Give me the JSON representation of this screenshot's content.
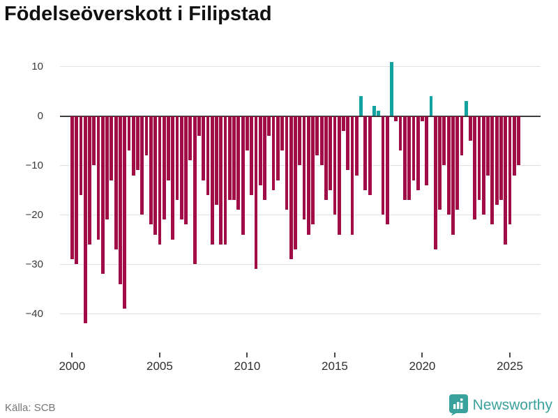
{
  "title": "Födelseöverskott i Filipstad",
  "source": {
    "text": "Källa: SCB"
  },
  "brand": {
    "name": "Newsworthy",
    "color": "#3aa29c"
  },
  "chart_data": {
    "type": "bar",
    "period": "quarterly",
    "x_start_year": 2000,
    "x_start_quarter": 1,
    "values": [
      -29,
      -30,
      -16,
      -42,
      -26,
      -10,
      -25,
      -32,
      -21,
      -13,
      -27,
      -34,
      -39,
      -7,
      -12,
      -11,
      -20,
      -8,
      -22,
      -24,
      -26,
      -21,
      -13,
      -25,
      -17,
      -21,
      -22,
      -9,
      -30,
      -4,
      -13,
      -16,
      -26,
      -18,
      -26,
      -26,
      -17,
      -17,
      -19,
      -24,
      -7,
      -16,
      -31,
      -14,
      -17,
      -4,
      -15,
      -13,
      -7,
      -19,
      -29,
      -27,
      -10,
      -21,
      -24,
      -22,
      -8,
      -10,
      -17,
      -15,
      -20,
      -24,
      -3,
      -11,
      -24,
      -12,
      4,
      -15,
      -16,
      2,
      1,
      -20,
      -22,
      11,
      -1,
      -7,
      -17,
      -17,
      -13,
      -15,
      -1,
      -14,
      4,
      -27,
      -19,
      -10,
      -20,
      -24,
      -19,
      -8,
      3,
      -5,
      -21,
      -17,
      -20,
      -12,
      -22,
      -18,
      -17,
      -26,
      -22,
      -12,
      -10
    ],
    "yticks": [
      10,
      0,
      -10,
      -20,
      -30,
      -40
    ],
    "xticks": [
      2000,
      2005,
      2010,
      2015,
      2020,
      2025
    ],
    "ylim": [
      -47,
      11.5
    ],
    "grid": true,
    "legend": "none",
    "positive_color": "#12a2a2",
    "negative_color": "#a00d46",
    "zero_line_color": "#3d3d3d",
    "gridline_color": "#e2e2e2"
  }
}
